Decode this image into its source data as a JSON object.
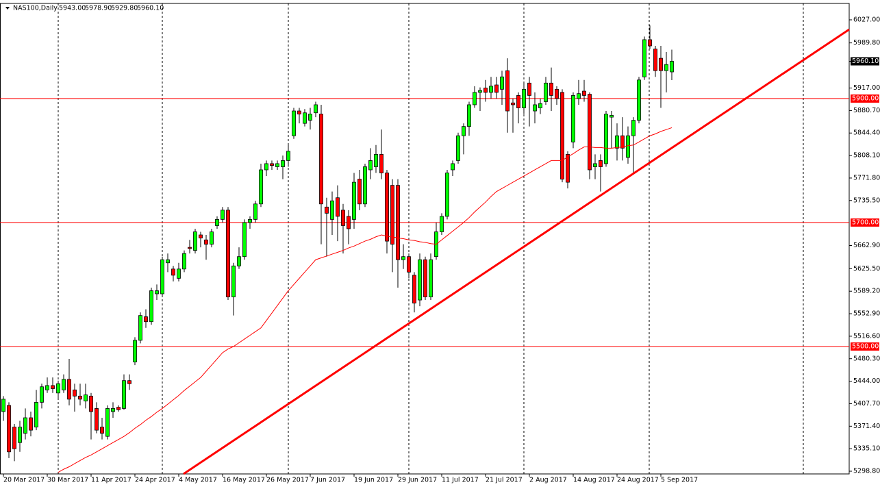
{
  "chart_data": {
    "type": "candlestick",
    "title": "NAS100,Daily",
    "header_ohlc": [
      "5943.00",
      "5978.90",
      "5929.80",
      "5960.10"
    ],
    "categories": [
      "20 Mar 2017",
      null,
      null,
      null,
      null,
      null,
      null,
      null,
      "30 Mar 2017",
      null,
      null,
      null,
      null,
      null,
      null,
      null,
      "11 Apr 2017",
      null,
      null,
      null,
      null,
      null,
      null,
      null,
      "24 Apr 2017",
      null,
      null,
      null,
      null,
      null,
      null,
      null,
      "4 May 2017",
      null,
      null,
      null,
      null,
      null,
      null,
      null,
      "16 May 2017",
      null,
      null,
      null,
      null,
      null,
      null,
      null,
      "26 May 2017",
      null,
      null,
      null,
      null,
      null,
      null,
      null,
      "7 Jun 2017",
      null,
      null,
      null,
      null,
      null,
      null,
      null,
      "19 Jun 2017",
      null,
      null,
      null,
      null,
      null,
      null,
      null,
      "29 Jun 2017",
      null,
      null,
      null,
      null,
      null,
      null,
      null,
      "11 Jul 2017",
      null,
      null,
      null,
      null,
      null,
      null,
      null,
      "21 Jul 2017",
      null,
      null,
      null,
      null,
      null,
      null,
      null,
      "2 Aug 2017",
      null,
      null,
      null,
      null,
      null,
      null,
      null,
      "14 Aug 2017",
      null,
      null,
      null,
      null,
      null,
      null,
      null,
      "24 Aug 2017",
      null,
      null,
      null,
      null,
      null,
      null,
      null,
      "5 Sep 2017",
      null,
      null
    ],
    "open": [
      5395,
      5405,
      5370,
      5345,
      5360,
      5385,
      5370,
      5410,
      5430,
      5437,
      5425,
      5430,
      5447,
      5430,
      5420,
      5412,
      5420,
      5400,
      5370,
      5355,
      5395,
      5402,
      5400,
      5445,
      5475,
      5510,
      5548,
      5540,
      5585,
      5585,
      5635,
      5625,
      5610,
      5625,
      5660,
      5655,
      5680,
      5672,
      5665,
      5695,
      5705,
      5720,
      5580,
      5630,
      5645,
      5700,
      5705,
      5730,
      5785,
      5795,
      5790,
      5790,
      5800,
      5840,
      5880,
      5860,
      5865,
      5877,
      5875,
      5725,
      5705,
      5740,
      5720,
      5710,
      5705,
      5770,
      5730,
      5785,
      5790,
      5810,
      5780,
      5760,
      5760,
      5640,
      5645,
      5615,
      5575,
      5640,
      5580,
      5645,
      5685,
      5710,
      5785,
      5800,
      5840,
      5855,
      5890,
      5910,
      5917,
      5910,
      5922,
      5915,
      5945,
      5893,
      5905,
      5885,
      5925,
      5880,
      5885,
      5895,
      5925,
      5915,
      5910,
      5810,
      5830,
      5900,
      5912,
      5907,
      5790,
      5800,
      5795,
      5870,
      5820,
      5840,
      5805,
      5840,
      5865,
      5935,
      5995,
      5980,
      5965,
      5945,
      5943
    ],
    "high": [
      5420,
      5410,
      5375,
      5380,
      5400,
      5395,
      5430,
      5440,
      5450,
      5450,
      5445,
      5455,
      5480,
      5440,
      5440,
      5440,
      5425,
      5410,
      5385,
      5405,
      5410,
      5405,
      5455,
      5455,
      5515,
      5555,
      5560,
      5595,
      5600,
      5645,
      5650,
      5630,
      5635,
      5655,
      5672,
      5690,
      5685,
      5680,
      5690,
      5710,
      5725,
      5725,
      5635,
      5660,
      5705,
      5710,
      5735,
      5795,
      5800,
      5800,
      5800,
      5808,
      5825,
      5885,
      5885,
      5883,
      5885,
      5895,
      5890,
      5740,
      5750,
      5760,
      5730,
      5720,
      5780,
      5785,
      5795,
      5820,
      5825,
      5850,
      5785,
      5770,
      5770,
      5665,
      5650,
      5620,
      5650,
      5645,
      5650,
      5700,
      5715,
      5785,
      5800,
      5845,
      5860,
      5895,
      5920,
      5918,
      5930,
      5935,
      5935,
      5945,
      5965,
      5900,
      5910,
      5925,
      5935,
      5910,
      5900,
      5935,
      5950,
      5920,
      5915,
      5815,
      5910,
      5930,
      5930,
      5910,
      5810,
      5810,
      5880,
      5880,
      5860,
      5870,
      5855,
      5870,
      5935,
      6000,
      6018,
      5985,
      5985,
      5975,
      5978.9
    ],
    "low": [
      5380,
      5320,
      5315,
      5330,
      5350,
      5355,
      5365,
      5400,
      5425,
      5425,
      5415,
      5425,
      5405,
      5395,
      5405,
      5400,
      5350,
      5360,
      5350,
      5350,
      5385,
      5395,
      5398,
      5430,
      5470,
      5505,
      5530,
      5535,
      5575,
      5580,
      5620,
      5605,
      5605,
      5620,
      5650,
      5650,
      5660,
      5640,
      5660,
      5690,
      5700,
      5575,
      5550,
      5625,
      5640,
      5690,
      5700,
      5725,
      5775,
      5785,
      5785,
      5770,
      5790,
      5835,
      5860,
      5855,
      5850,
      5870,
      5665,
      5645,
      5680,
      5670,
      5650,
      5665,
      5690,
      5720,
      5725,
      5770,
      5780,
      5770,
      5650,
      5620,
      5595,
      5625,
      5610,
      5555,
      5565,
      5575,
      5575,
      5640,
      5680,
      5705,
      5775,
      5795,
      5810,
      5840,
      5885,
      5880,
      5895,
      5900,
      5900,
      5890,
      5845,
      5845,
      5860,
      5875,
      5855,
      5860,
      5875,
      5890,
      5880,
      5890,
      5765,
      5755,
      5820,
      5890,
      5895,
      5770,
      5770,
      5750,
      5790,
      5820,
      5800,
      5800,
      5795,
      5780,
      5860,
      5930,
      5980,
      5935,
      5885,
      5910,
      5929.8
    ],
    "close": [
      5415,
      5330,
      5335,
      5370,
      5385,
      5365,
      5410,
      5435,
      5437,
      5432,
      5440,
      5447,
      5415,
      5420,
      5415,
      5422,
      5395,
      5365,
      5360,
      5400,
      5400,
      5398,
      5445,
      5440,
      5510,
      5550,
      5540,
      5590,
      5590,
      5640,
      5640,
      5615,
      5625,
      5650,
      5658,
      5685,
      5675,
      5665,
      5685,
      5705,
      5720,
      5580,
      5630,
      5645,
      5700,
      5705,
      5730,
      5785,
      5795,
      5792,
      5795,
      5800,
      5815,
      5880,
      5875,
      5877,
      5875,
      5890,
      5730,
      5715,
      5735,
      5710,
      5695,
      5690,
      5765,
      5730,
      5790,
      5800,
      5810,
      5780,
      5670,
      5665,
      5640,
      5645,
      5620,
      5570,
      5640,
      5580,
      5640,
      5685,
      5710,
      5780,
      5795,
      5840,
      5855,
      5890,
      5910,
      5913,
      5910,
      5920,
      5910,
      5935,
      5880,
      5890,
      5885,
      5915,
      5905,
      5890,
      5892,
      5925,
      5905,
      5900,
      5770,
      5765,
      5905,
      5908,
      5905,
      5785,
      5795,
      5790,
      5875,
      5873,
      5840,
      5820,
      5840,
      5865,
      5930,
      5995,
      5985,
      5945,
      5945,
      5955,
      5960.1
    ],
    "up_color": "#00ff00",
    "down_color": "#ff0000",
    "ylim": [
      5294.4,
      6053.5
    ],
    "yticks": [
      {
        "value": 6027,
        "label": "6027.00"
      },
      {
        "value": 5989.8,
        "label": "5989.80"
      },
      {
        "value": 5917,
        "label": "5917.00"
      },
      {
        "value": 5880.7,
        "label": "5880.70"
      },
      {
        "value": 5844.4,
        "label": "5844.40"
      },
      {
        "value": 5808.1,
        "label": "5808.10"
      },
      {
        "value": 5771.8,
        "label": "5771.80"
      },
      {
        "value": 5735.5,
        "label": "5735.50"
      },
      {
        "value": 5662.9,
        "label": "5662.90"
      },
      {
        "value": 5625.5,
        "label": "5625.50"
      },
      {
        "value": 5589.2,
        "label": "5589.20"
      },
      {
        "value": 5552.9,
        "label": "5552.90"
      },
      {
        "value": 5516.6,
        "label": "5516.60"
      },
      {
        "value": 5480.3,
        "label": "5480.30"
      },
      {
        "value": 5444,
        "label": "5444.00"
      },
      {
        "value": 5407.7,
        "label": "5407.70"
      },
      {
        "value": 5371.4,
        "label": "5371.40"
      },
      {
        "value": 5335.1,
        "label": "5335.10"
      },
      {
        "value": 5298.8,
        "label": "5298.80"
      }
    ],
    "levels": {
      "color": "#ff0000",
      "values": [
        5900,
        5700,
        5500
      ],
      "labels": [
        "5900.00",
        "5700.00",
        "5500.00"
      ]
    },
    "last_price": {
      "value": 5960.1,
      "label": "5960.10"
    },
    "moving_average": {
      "color": "#ff0000",
      "values": [
        null,
        null,
        null,
        null,
        null,
        null,
        null,
        null,
        null,
        null,
        5297,
        5302,
        5306,
        5311,
        5316,
        5321,
        5325,
        5330,
        5335,
        5340,
        5345,
        5350,
        5355,
        5361,
        5368,
        5374,
        5381,
        5387,
        5394,
        5400,
        5407,
        5414,
        5421,
        5429,
        5436,
        5443,
        5450,
        5460,
        5470,
        5480,
        5490,
        5496,
        5500,
        5506,
        5512,
        5518,
        5524,
        5530,
        5542,
        5554,
        5566,
        5578,
        5590,
        5600,
        5610,
        5620,
        5630,
        5640,
        5643,
        5646,
        5649,
        5652,
        5655,
        5659,
        5662,
        5666,
        5670,
        5673,
        5677,
        5680,
        5678,
        5677,
        5675,
        5674,
        5672,
        5671,
        5669,
        5668,
        5666,
        5665,
        5672,
        5679,
        5686,
        5693,
        5700,
        5708,
        5717,
        5725,
        5733,
        5742,
        5750,
        5755,
        5760,
        5765,
        5770,
        5775,
        5780,
        5785,
        5790,
        5795,
        5800,
        5800,
        5800,
        5806,
        5811,
        5817,
        5822,
        5822,
        5821,
        5821,
        5820,
        5820,
        5821,
        5822,
        5824,
        5825,
        5830,
        5835,
        5840,
        5843,
        5847,
        5850,
        5853
      ]
    },
    "trendline": {
      "color": "#ff0000",
      "x": [
        32.875,
        154.375
      ],
      "values": [
        5294.4,
        6011.5
      ]
    }
  }
}
